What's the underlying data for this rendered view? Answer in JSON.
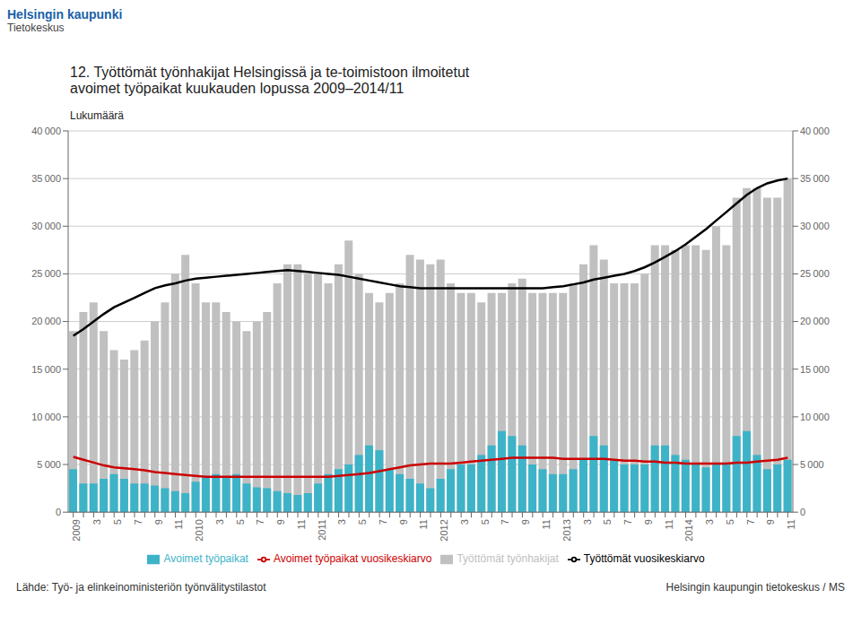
{
  "chart_data": {
    "type": "bar",
    "title": "12. Työttömät työnhakijat Helsingissä ja te-toimistoon ilmoitetut",
    "subtitle": "avoimet työpaikat kuukauden lopussa 2009–2014/11",
    "ylabel": "Lukumäärä",
    "annotations": [
      "Helsingin kaupunki",
      "Tietokeskus",
      "Lähde: Työ- ja elinkeinoministeriön työnvälitystilastot",
      "Helsingin kaupungin tietokeskus / MS"
    ],
    "categories": [
      "2009",
      null,
      "3",
      null,
      "5",
      null,
      "7",
      null,
      "9",
      null,
      "11",
      null,
      "2010",
      null,
      "3",
      null,
      "5",
      null,
      "7",
      null,
      "9",
      null,
      "11",
      null,
      "2011",
      null,
      "3",
      null,
      "5",
      null,
      "7",
      null,
      "9",
      null,
      "11",
      null,
      "2012",
      null,
      "3",
      null,
      "5",
      null,
      "7",
      null,
      "9",
      null,
      "11",
      null,
      "2013",
      null,
      "3",
      null,
      "5",
      null,
      "7",
      null,
      "9",
      null,
      "11",
      null,
      "2014",
      null,
      "3",
      null,
      "5",
      null,
      "7",
      null,
      "9",
      null,
      "11"
    ],
    "series": [
      {
        "name": "Työttömät työnhakijat",
        "type": "bar",
        "color": "#c0c0c0",
        "values": [
          19000,
          21000,
          22000,
          19000,
          17000,
          16000,
          17000,
          18000,
          20000,
          22000,
          25000,
          27000,
          24000,
          22000,
          22000,
          21000,
          20000,
          19000,
          20000,
          21000,
          24000,
          26000,
          26000,
          25000,
          25000,
          24000,
          26000,
          28500,
          25000,
          23000,
          22000,
          23000,
          24000,
          27000,
          26500,
          26000,
          26500,
          24000,
          23000,
          23000,
          22000,
          23000,
          23000,
          24000,
          24500,
          23000,
          23000,
          23000,
          23000,
          24000,
          26000,
          28000,
          26500,
          24000,
          24000,
          24000,
          25000,
          28000,
          28000,
          27500,
          28000,
          28000,
          27500,
          30000,
          28000,
          33000,
          34000,
          34000,
          33000,
          33000,
          35000
        ]
      },
      {
        "name": "Avoimet työpaikat",
        "type": "bar",
        "color": "#3db3c8",
        "values": [
          4500,
          3000,
          3000,
          3500,
          4000,
          3500,
          3000,
          3000,
          2800,
          2500,
          2200,
          2000,
          3200,
          3800,
          4000,
          3800,
          4000,
          3000,
          2600,
          2500,
          2200,
          2000,
          1800,
          2000,
          3000,
          4000,
          4500,
          5000,
          6000,
          7000,
          6500,
          4500,
          4000,
          3500,
          3000,
          2500,
          3500,
          4500,
          5000,
          5000,
          6000,
          7000,
          8500,
          8000,
          7000,
          5000,
          4500,
          4000,
          4000,
          4500,
          5500,
          8000,
          7000,
          5500,
          5000,
          5000,
          5000,
          7000,
          7000,
          6000,
          5500,
          5000,
          4700,
          5000,
          5000,
          8000,
          8500,
          6000,
          4500,
          5000,
          5500
        ]
      },
      {
        "name": "Työttömät vuosikeskiarvo",
        "type": "line",
        "color": "#000000",
        "values": [
          18500,
          19200,
          20000,
          20800,
          21500,
          22000,
          22500,
          23000,
          23500,
          23800,
          24000,
          24300,
          24500,
          24600,
          24700,
          24800,
          24900,
          25000,
          25100,
          25200,
          25300,
          25400,
          25300,
          25200,
          25100,
          25000,
          24900,
          24700,
          24500,
          24300,
          24100,
          23900,
          23700,
          23600,
          23500,
          23500,
          23500,
          23500,
          23500,
          23500,
          23500,
          23500,
          23500,
          23500,
          23500,
          23500,
          23500,
          23600,
          23700,
          23900,
          24100,
          24400,
          24600,
          24800,
          25000,
          25300,
          25700,
          26200,
          26800,
          27400,
          28100,
          28900,
          29700,
          30600,
          31500,
          32400,
          33300,
          34000,
          34500,
          34800,
          35000
        ]
      },
      {
        "name": "Avoimet työpaikat vuosikeskiarvo",
        "type": "line",
        "color": "#cc0000",
        "values": [
          5800,
          5500,
          5200,
          4900,
          4700,
          4600,
          4500,
          4400,
          4200,
          4100,
          4000,
          3900,
          3800,
          3700,
          3700,
          3700,
          3700,
          3700,
          3700,
          3700,
          3700,
          3700,
          3700,
          3700,
          3700,
          3700,
          3800,
          3900,
          4000,
          4100,
          4300,
          4500,
          4700,
          4900,
          5000,
          5100,
          5100,
          5100,
          5200,
          5300,
          5400,
          5500,
          5600,
          5700,
          5700,
          5700,
          5700,
          5700,
          5600,
          5600,
          5600,
          5600,
          5600,
          5500,
          5400,
          5400,
          5300,
          5300,
          5200,
          5200,
          5100,
          5100,
          5100,
          5100,
          5100,
          5200,
          5200,
          5300,
          5400,
          5500,
          5700
        ]
      }
    ],
    "ylim": [
      0,
      40000
    ],
    "yticks": [
      0,
      {
        "value": 5000,
        "label": "5 000"
      },
      {
        "value": 10000,
        "label": "10 000"
      },
      {
        "value": 15000,
        "label": "15 000"
      },
      {
        "value": 20000,
        "label": "20 000"
      },
      {
        "value": 25000,
        "label": "25 000"
      },
      {
        "value": 30000,
        "label": "30 000"
      },
      {
        "value": 35000,
        "label": "35 000"
      },
      {
        "value": 40000,
        "label": "40 000"
      }
    ],
    "y2lim": [
      0,
      40000
    ],
    "y2ticks": [
      0,
      {
        "value": 5000,
        "label": "5 000"
      },
      {
        "value": 10000,
        "label": "10 000"
      },
      {
        "value": 15000,
        "label": "15 000"
      },
      {
        "value": 20000,
        "label": "20 000"
      },
      {
        "value": 25000,
        "label": "25 000"
      },
      {
        "value": 30000,
        "label": "30 000"
      },
      {
        "value": 35000,
        "label": "35 000"
      },
      {
        "value": 40000,
        "label": "40 000"
      }
    ],
    "grid": true
  }
}
